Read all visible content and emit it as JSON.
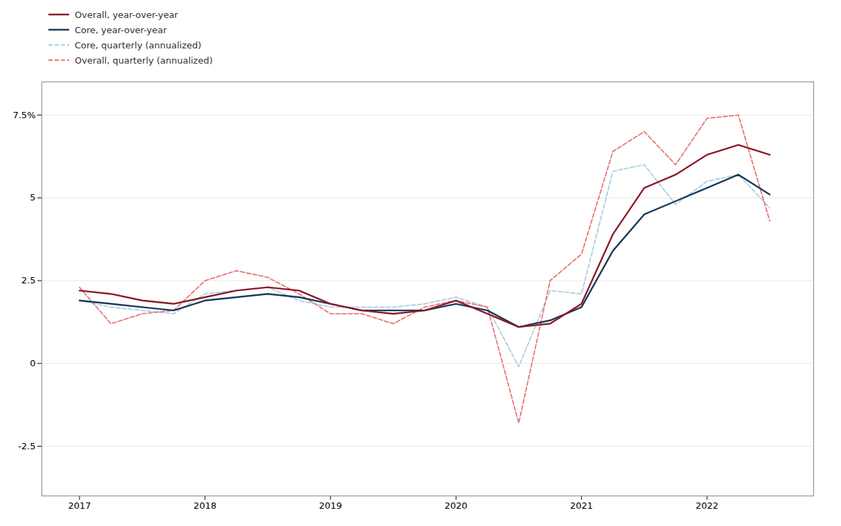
{
  "chart_data": {
    "type": "line",
    "x": [
      2017.0,
      2017.25,
      2017.5,
      2017.75,
      2018.0,
      2018.25,
      2018.5,
      2018.75,
      2019.0,
      2019.25,
      2019.5,
      2019.75,
      2020.0,
      2020.25,
      2020.5,
      2020.75,
      2021.0,
      2021.25,
      2021.5,
      2021.75,
      2022.0,
      2022.25,
      2022.5
    ],
    "series": [
      {
        "name": "Overall, year-over-year",
        "color": "#8B1A2A",
        "line_style": "solid",
        "values": [
          2.2,
          2.1,
          1.9,
          1.8,
          2.0,
          2.2,
          2.3,
          2.2,
          1.8,
          1.6,
          1.5,
          1.6,
          1.9,
          1.5,
          1.1,
          1.2,
          1.8,
          3.9,
          5.3,
          5.7,
          6.3,
          6.6,
          6.3
        ]
      },
      {
        "name": "Core, year-over-year",
        "color": "#1A3A5C",
        "line_style": "solid",
        "values": [
          1.9,
          1.8,
          1.7,
          1.6,
          1.9,
          2.0,
          2.1,
          2.0,
          1.8,
          1.6,
          1.6,
          1.6,
          1.8,
          1.6,
          1.1,
          1.3,
          1.7,
          3.4,
          4.5,
          4.9,
          5.3,
          5.7,
          5.1
        ]
      },
      {
        "name": "Core, quarterly (annualized)",
        "color": "#AACFE0",
        "line_style": "dashed",
        "values": [
          1.9,
          1.7,
          1.6,
          1.5,
          2.1,
          2.2,
          2.3,
          1.9,
          1.7,
          1.7,
          1.7,
          1.8,
          2.0,
          1.7,
          -0.1,
          2.2,
          2.1,
          5.8,
          6.0,
          4.8,
          5.5,
          5.7,
          4.7
        ]
      },
      {
        "name": "Overall, quarterly (annualized)",
        "color": "#E87575",
        "line_style": "dashed",
        "values": [
          2.3,
          1.2,
          1.5,
          1.6,
          2.5,
          2.8,
          2.6,
          2.1,
          1.5,
          1.5,
          1.2,
          1.7,
          1.9,
          1.7,
          -1.8,
          2.5,
          3.3,
          6.4,
          7.0,
          6.0,
          7.4,
          7.5,
          4.3
        ]
      }
    ],
    "xlim": [
      2016.7,
      2022.85
    ],
    "xticks": [
      2017,
      2018,
      2019,
      2020,
      2021,
      2022
    ],
    "ylim": [
      -4.0,
      8.5
    ],
    "yticks": [
      -2.5,
      0,
      2.5,
      5,
      {
        "value": 7.5,
        "label": "7.5%"
      }
    ],
    "grid": true,
    "legend": "upper left"
  }
}
